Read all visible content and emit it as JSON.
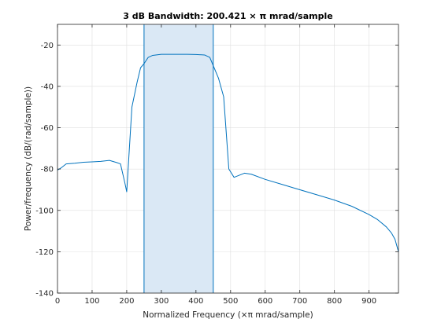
{
  "chart_data": {
    "type": "line",
    "title": "3 dB Bandwidth: 200.421 × π mrad/sample",
    "xlabel": "Normalized Frequency  (×π mrad/sample)",
    "ylabel": "Power/frequency (dB/(rad/sample))",
    "xlim": [
      0,
      985
    ],
    "ylim": [
      -140,
      -10
    ],
    "xticks": [
      0,
      100,
      200,
      300,
      400,
      500,
      600,
      700,
      800,
      900
    ],
    "yticks": [
      -20,
      -40,
      -60,
      -80,
      -100,
      -120,
      -140
    ],
    "grid": true,
    "bandwidth": {
      "start": 250,
      "end": 450,
      "value": 200.421
    },
    "colors": {
      "line": "#0072BD",
      "band_fill": "#DAE8F5",
      "band_edge": "#0072BD"
    },
    "series": [
      {
        "x": [
          0,
          10,
          25,
          50,
          75,
          100,
          125,
          150,
          170,
          182,
          195,
          200,
          215,
          230,
          240,
          250,
          262,
          275,
          300,
          325,
          350,
          375,
          400,
          425,
          440,
          450,
          465,
          480,
          495,
          510,
          525,
          540,
          560,
          600,
          650,
          700,
          750,
          800,
          850,
          900,
          925,
          950,
          965,
          975,
          985
        ],
        "y": [
          -80.5,
          -79.5,
          -77.5,
          -77.2,
          -76.7,
          -76.5,
          -76.3,
          -75.8,
          -76.8,
          -77.5,
          -87,
          -91,
          -50,
          -38,
          -31,
          -29,
          -26,
          -25,
          -24.5,
          -24.5,
          -24.5,
          -24.5,
          -24.6,
          -24.8,
          -26,
          -30,
          -36,
          -45,
          -80,
          -84,
          -83,
          -82,
          -82.5,
          -85,
          -87.5,
          -90,
          -92.5,
          -95,
          -98,
          -102,
          -104.5,
          -108,
          -111,
          -114,
          -120
        ]
      }
    ]
  }
}
